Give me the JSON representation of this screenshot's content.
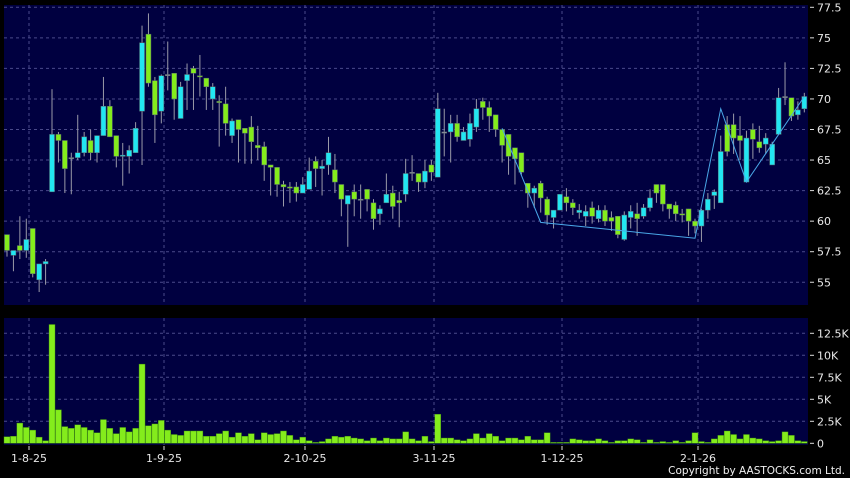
{
  "chart_data": [
    {
      "type": "candlestick",
      "panel": "price",
      "y_ticks": [
        55,
        57.5,
        60,
        62.5,
        65,
        67.5,
        70,
        72.5,
        75,
        77.5
      ],
      "y_tick_labels": [
        "55",
        "57.5",
        "60",
        "62.5",
        "65",
        "67.5",
        "70",
        "72.5",
        "75",
        "77.5"
      ],
      "ylim": [
        52.8,
        77.7
      ],
      "grid": true,
      "colors": {
        "up": "#22e6f2",
        "down": "#84ec1c",
        "wick": "#9a9aa8",
        "background": "#000040",
        "grid": "#4a4a8a",
        "trendline": "#4aa8e8"
      },
      "ohlc_fields": [
        "open",
        "high",
        "low",
        "close"
      ],
      "ohlc": [
        [
          58.9,
          58.9,
          57.1,
          57.6
        ],
        [
          57.2,
          57.6,
          55.9,
          57.6
        ],
        [
          58.0,
          60.4,
          56.9,
          57.6
        ],
        [
          57.6,
          60.2,
          57.0,
          58.5
        ],
        [
          59.4,
          59.4,
          55.4,
          55.7
        ],
        [
          55.2,
          56.5,
          54.2,
          56.5
        ],
        [
          56.5,
          56.9,
          54.8,
          56.7
        ],
        [
          62.4,
          70.8,
          62.4,
          67.1
        ],
        [
          67.1,
          67.3,
          64.8,
          66.6
        ],
        [
          66.6,
          66.6,
          62.3,
          64.3
        ],
        [
          65.2,
          65.6,
          62.2,
          65.2
        ],
        [
          65.2,
          68.7,
          65.0,
          65.6
        ],
        [
          65.6,
          67.3,
          65.3,
          66.9
        ],
        [
          66.6,
          67.5,
          65.0,
          65.6
        ],
        [
          65.6,
          67.0,
          64.8,
          67.0
        ],
        [
          67.0,
          71.8,
          67.0,
          69.4
        ],
        [
          69.4,
          69.9,
          66.9,
          66.9
        ],
        [
          67.0,
          67.0,
          64.4,
          65.3
        ],
        [
          65.3,
          66.4,
          62.9,
          65.4
        ],
        [
          65.3,
          66.2,
          63.9,
          65.8
        ],
        [
          65.6,
          68.1,
          65.6,
          67.6
        ],
        [
          69.0,
          76.0,
          64.6,
          74.6
        ],
        [
          75.3,
          77.0,
          71.0,
          71.3
        ],
        [
          71.5,
          71.8,
          66.4,
          68.7
        ],
        [
          69.0,
          72.0,
          68.0,
          71.9
        ],
        [
          72.0,
          74.7,
          70.7,
          72.0
        ],
        [
          72.1,
          72.1,
          68.3,
          70.0
        ],
        [
          68.4,
          71.4,
          68.4,
          71.0
        ],
        [
          71.5,
          72.9,
          69.1,
          72.0
        ],
        [
          72.5,
          72.7,
          69.1,
          72.1
        ],
        [
          71.9,
          73.6,
          70.2,
          71.8
        ],
        [
          71.7,
          71.7,
          69.1,
          71.0
        ],
        [
          70.0,
          71.3,
          69.1,
          71.0
        ],
        [
          69.8,
          70.3,
          66.1,
          69.7
        ],
        [
          69.6,
          71.0,
          67.0,
          68.0
        ],
        [
          67.0,
          68.4,
          66.4,
          68.2
        ],
        [
          68.3,
          68.3,
          64.8,
          67.5
        ],
        [
          67.6,
          67.6,
          64.7,
          67.2
        ],
        [
          67.7,
          68.6,
          64.7,
          66.5
        ],
        [
          66.2,
          67.8,
          65.0,
          66.0
        ],
        [
          66.1,
          66.5,
          63.3,
          64.6
        ],
        [
          64.6,
          64.6,
          62.1,
          64.4
        ],
        [
          64.4,
          64.4,
          62.0,
          63.0
        ],
        [
          63.0,
          63.3,
          61.2,
          62.8
        ],
        [
          62.8,
          63.2,
          61.5,
          62.7
        ],
        [
          62.8,
          63.2,
          61.6,
          62.3
        ],
        [
          62.3,
          63.6,
          62.3,
          63.0
        ],
        [
          62.6,
          65.2,
          62.6,
          64.1
        ],
        [
          64.9,
          65.3,
          62.8,
          64.3
        ],
        [
          64.3,
          65.0,
          62.1,
          64.5
        ],
        [
          64.6,
          66.9,
          63.8,
          65.6
        ],
        [
          64.2,
          65.5,
          62.3,
          63.2
        ],
        [
          63.0,
          63.0,
          60.4,
          61.8
        ],
        [
          61.4,
          62.1,
          57.9,
          62.1
        ],
        [
          62.4,
          63.0,
          60.4,
          61.8
        ],
        [
          61.8,
          63.0,
          60.2,
          61.8
        ],
        [
          62.6,
          62.6,
          60.8,
          61.8
        ],
        [
          61.5,
          61.8,
          59.3,
          60.2
        ],
        [
          60.6,
          61.3,
          59.7,
          61.0
        ],
        [
          61.5,
          63.9,
          61.5,
          62.2
        ],
        [
          62.3,
          62.9,
          60.2,
          61.2
        ],
        [
          61.7,
          62.4,
          59.5,
          61.5
        ],
        [
          62.2,
          65.1,
          61.6,
          63.9
        ],
        [
          64.0,
          65.4,
          63.3,
          64.0
        ],
        [
          63.9,
          63.9,
          62.4,
          63.2
        ],
        [
          63.2,
          65.0,
          62.7,
          64.1
        ],
        [
          64.6,
          65.0,
          63.3,
          64.0
        ],
        [
          63.6,
          70.5,
          63.6,
          69.2
        ],
        [
          67.3,
          69.2,
          65.3,
          67.3
        ],
        [
          67.3,
          68.7,
          64.8,
          68.0
        ],
        [
          68.0,
          68.7,
          66.5,
          66.9
        ],
        [
          66.6,
          67.7,
          66.6,
          67.3
        ],
        [
          66.7,
          68.8,
          66.1,
          68.0
        ],
        [
          67.7,
          70.0,
          67.3,
          69.2
        ],
        [
          69.8,
          70.1,
          68.3,
          69.3
        ],
        [
          69.3,
          69.8,
          67.3,
          68.6
        ],
        [
          68.7,
          68.7,
          66.9,
          67.5
        ],
        [
          67.5,
          67.5,
          64.8,
          66.2
        ],
        [
          67.1,
          67.1,
          63.8,
          65.3
        ],
        [
          66.0,
          66.0,
          63.0,
          65.1
        ],
        [
          65.6,
          65.6,
          63.8,
          64.0
        ],
        [
          63.1,
          63.1,
          61.1,
          62.3
        ],
        [
          62.3,
          62.9,
          61.1,
          62.7
        ],
        [
          63.1,
          63.3,
          60.7,
          61.9
        ],
        [
          61.8,
          62.0,
          59.7,
          60.5
        ],
        [
          60.3,
          60.9,
          59.4,
          60.9
        ],
        [
          60.9,
          62.2,
          60.9,
          62.2
        ],
        [
          62.0,
          62.7,
          60.8,
          61.5
        ],
        [
          61.5,
          61.8,
          60.5,
          61.1
        ],
        [
          60.7,
          61.4,
          60.2,
          60.9
        ],
        [
          60.4,
          61.3,
          59.6,
          60.8
        ],
        [
          61.1,
          61.6,
          59.8,
          60.4
        ],
        [
          60.2,
          61.3,
          59.9,
          60.9
        ],
        [
          60.9,
          61.3,
          59.6,
          60.0
        ],
        [
          60.3,
          60.8,
          59.2,
          60.0
        ],
        [
          60.4,
          60.4,
          58.6,
          58.9
        ],
        [
          58.5,
          60.8,
          58.4,
          60.5
        ],
        [
          60.3,
          61.3,
          59.4,
          60.8
        ],
        [
          60.6,
          61.5,
          58.8,
          60.2
        ],
        [
          60.4,
          61.4,
          60.2,
          61.1
        ],
        [
          61.1,
          62.6,
          60.8,
          61.9
        ],
        [
          63.0,
          63.0,
          61.5,
          62.3
        ],
        [
          63.0,
          63.0,
          60.8,
          61.4
        ],
        [
          61.4,
          61.4,
          60.2,
          61.0
        ],
        [
          61.3,
          61.6,
          60.0,
          60.6
        ],
        [
          60.6,
          61.0,
          59.9,
          60.5
        ],
        [
          61.0,
          61.0,
          58.8,
          60.0
        ],
        [
          60.0,
          60.2,
          59.0,
          59.6
        ],
        [
          59.6,
          61.0,
          58.3,
          60.9
        ],
        [
          60.9,
          62.3,
          60.2,
          61.8
        ],
        [
          62.1,
          62.6,
          61.0,
          62.4
        ],
        [
          61.5,
          67.0,
          61.5,
          65.7
        ],
        [
          67.9,
          68.6,
          65.3,
          65.7
        ],
        [
          67.9,
          68.8,
          65.5,
          66.8
        ],
        [
          67.0,
          68.6,
          65.0,
          66.6
        ],
        [
          63.2,
          67.4,
          63.2,
          66.8
        ],
        [
          67.5,
          68.0,
          65.1,
          66.7
        ],
        [
          66.5,
          67.8,
          65.6,
          66.0
        ],
        [
          66.3,
          67.2,
          65.5,
          66.8
        ],
        [
          64.6,
          66.5,
          64.6,
          66.3
        ],
        [
          67.1,
          70.9,
          67.1,
          70.1
        ],
        [
          70.2,
          73.0,
          69.5,
          70.2
        ],
        [
          70.1,
          70.1,
          68.2,
          68.6
        ],
        [
          68.7,
          69.8,
          68.3,
          69.1
        ],
        [
          69.2,
          70.5,
          68.9,
          70.2
        ]
      ],
      "trendline": [
        [
          78,
          67.6
        ],
        [
          84,
          59.9
        ],
        [
          108,
          58.6
        ],
        [
          112,
          69.2
        ],
        [
          116,
          63.2
        ],
        [
          125,
          70.2
        ]
      ]
    },
    {
      "type": "bar",
      "panel": "volume",
      "y_ticks": [
        0,
        2.5,
        5,
        7.5,
        10,
        12.5
      ],
      "y_tick_labels": [
        "0",
        "2.5K",
        "5K",
        "7.5K",
        "10K",
        "12.5K"
      ],
      "ylim": [
        0,
        14.2
      ],
      "unit": "K",
      "color": "#84ec1c",
      "values": [
        0.75,
        0.8,
        2.3,
        1.8,
        1.5,
        0.7,
        0.3,
        13.5,
        3.8,
        1.9,
        1.7,
        2.1,
        1.8,
        1.5,
        1.2,
        2.7,
        1.7,
        1.1,
        1.8,
        1.3,
        1.7,
        9.0,
        2.0,
        2.2,
        2.6,
        1.5,
        1.0,
        0.9,
        1.4,
        1.4,
        1.4,
        0.8,
        0.8,
        1.1,
        1.4,
        0.7,
        1.2,
        0.8,
        1.1,
        0.4,
        1.2,
        1.0,
        1.1,
        1.4,
        0.9,
        0.4,
        0.7,
        0.3,
        0.1,
        0.2,
        0.5,
        0.8,
        0.7,
        0.8,
        0.6,
        0.5,
        0.3,
        0.6,
        0.3,
        0.6,
        0.5,
        0.5,
        1.3,
        0.5,
        0.3,
        0.8,
        0.2,
        3.3,
        0.6,
        0.6,
        0.4,
        0.3,
        0.5,
        1.1,
        0.6,
        1.1,
        0.8,
        0.3,
        0.6,
        0.6,
        0.4,
        0.8,
        0.4,
        0.4,
        1.2,
        0.1,
        0.1,
        0.1,
        0.5,
        0.4,
        0.3,
        0.3,
        0.5,
        0.3,
        0.1,
        0.3,
        0.3,
        0.5,
        0.4,
        0.1,
        0.4,
        0.1,
        0.2,
        0.1,
        0.3,
        0.1,
        0.3,
        1.2,
        0.2,
        0.1,
        0.5,
        0.9,
        1.4,
        1.0,
        0.5,
        1.0,
        0.6,
        0.5,
        0.3,
        0.2,
        0.3,
        1.3,
        0.9,
        0.3,
        0.2
      ]
    }
  ],
  "x_axis": {
    "tick_labels": [
      "1-8-25",
      "1-9-25",
      "2-10-25",
      "3-11-25",
      "1-12-25",
      "2-1-26"
    ]
  },
  "copyright": "Copyright by AASTOCKS.com Ltd."
}
